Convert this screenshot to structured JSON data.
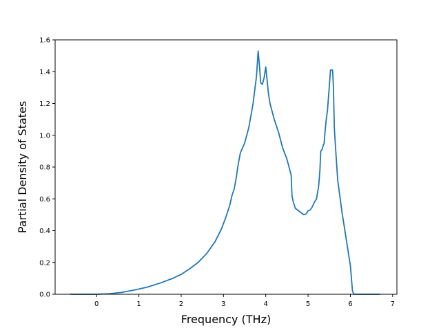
{
  "chart_data": {
    "type": "line",
    "title": "",
    "xlabel": "Frequency (THz)",
    "ylabel": "Partial Density of States",
    "xlim": [
      -0.98,
      7.1
    ],
    "ylim": [
      0.0,
      1.6
    ],
    "xticks": [
      0,
      1,
      2,
      3,
      4,
      5,
      6,
      7
    ],
    "xtick_labels": [
      "0",
      "1",
      "2",
      "3",
      "4",
      "5",
      "6",
      "7"
    ],
    "yticks": [
      0.0,
      0.2,
      0.4,
      0.6,
      0.8,
      1.0,
      1.2,
      1.4,
      1.6
    ],
    "ytick_labels": [
      "0.0",
      "0.2",
      "0.4",
      "0.6",
      "0.8",
      "1.0",
      "1.2",
      "1.4",
      "1.6"
    ],
    "grid": false,
    "legend": "none",
    "line_color": "#1f77b4",
    "series": [
      {
        "x": [
          -0.62,
          0.0,
          0.3,
          0.6,
          0.9,
          1.2,
          1.5,
          1.8,
          2.0,
          2.2,
          2.4,
          2.6,
          2.8,
          2.95,
          3.05,
          3.15,
          3.2,
          3.25,
          3.28,
          3.3,
          3.35,
          3.4,
          3.5,
          3.6,
          3.7,
          3.78,
          3.82,
          3.85,
          3.88,
          3.92,
          3.96,
          4.0,
          4.03,
          4.06,
          4.1,
          4.2,
          4.3,
          4.4,
          4.5,
          4.6,
          4.62,
          4.65,
          4.7,
          4.8,
          4.9,
          4.95,
          5.0,
          5.05,
          5.1,
          5.15,
          5.2,
          5.25,
          5.28,
          5.3,
          5.33,
          5.35,
          5.38,
          5.4,
          5.43,
          5.46,
          5.5,
          5.53,
          5.56,
          5.58,
          5.6,
          5.62,
          5.65,
          5.7,
          5.8,
          5.9,
          6.0,
          6.05,
          6.08,
          6.1,
          6.15,
          6.2,
          6.3,
          6.5,
          6.7
        ],
        "y": [
          0.0,
          0.0,
          0.003,
          0.012,
          0.027,
          0.045,
          0.07,
          0.1,
          0.125,
          0.16,
          0.2,
          0.255,
          0.33,
          0.41,
          0.48,
          0.56,
          0.62,
          0.66,
          0.7,
          0.73,
          0.82,
          0.89,
          0.95,
          1.05,
          1.2,
          1.37,
          1.53,
          1.44,
          1.33,
          1.32,
          1.36,
          1.43,
          1.35,
          1.27,
          1.2,
          1.1,
          1.02,
          0.92,
          0.85,
          0.75,
          0.62,
          0.58,
          0.54,
          0.52,
          0.5,
          0.505,
          0.525,
          0.53,
          0.55,
          0.58,
          0.6,
          0.68,
          0.78,
          0.9,
          0.91,
          0.93,
          0.95,
          1.02,
          1.1,
          1.16,
          1.3,
          1.41,
          1.41,
          1.41,
          1.3,
          1.05,
          0.92,
          0.72,
          0.52,
          0.35,
          0.18,
          0.02,
          0.002,
          0.0,
          0.0,
          0.0,
          0.0,
          0.0,
          0.0
        ]
      }
    ]
  }
}
